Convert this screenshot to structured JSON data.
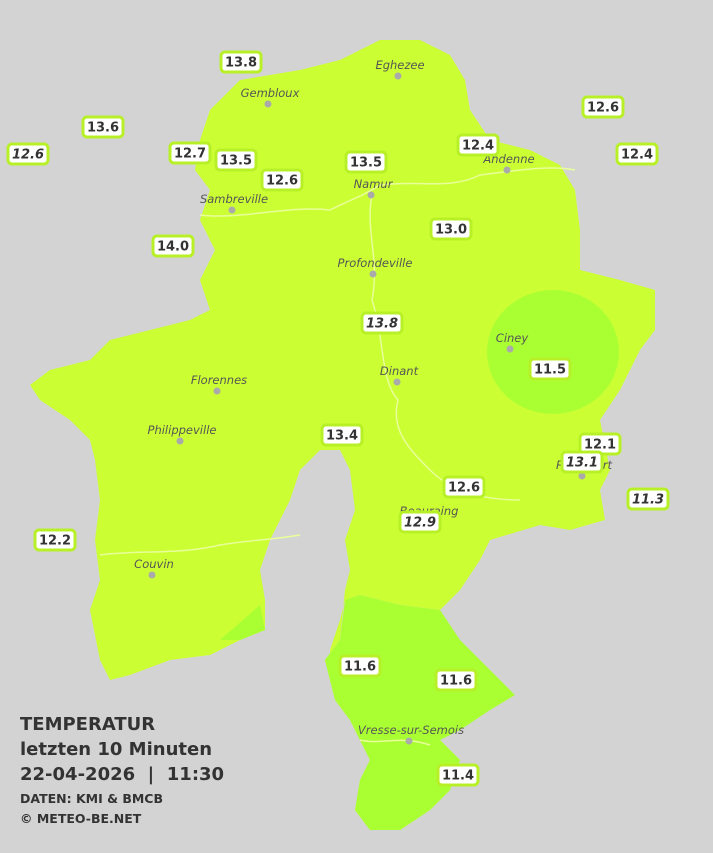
{
  "stations": [
    "13.8",
    "13.6",
    "12.6",
    "12.7",
    "13.5",
    "12.6",
    "13.5",
    "12.4",
    "12.6",
    "12.4",
    "14.0",
    "13.0",
    "13.8",
    "11.5",
    "13.4",
    "12.1",
    "13.1",
    "11.3",
    "12.6",
    "12.9",
    "12.2",
    "11.6",
    "11.6",
    "11.4"
  ],
  "cities": [
    "Eghezee",
    "Gembloux",
    "Andenne",
    "Namur",
    "Sambreville",
    "Profondeville",
    "Ciney",
    "Dinant",
    "Florennes",
    "Philippeville",
    "Rochefort",
    "Beauraing",
    "Couvin",
    "Vresse-sur-Semois"
  ],
  "info": {
    "title": "TEMPERATUR",
    "subtitle": "letzten 10 Minuten",
    "datetime": "22-04-2026  |  11:30",
    "source": "DATEN: KMI & BMCB",
    "copyright": "© METEO-BE.NET"
  }
}
